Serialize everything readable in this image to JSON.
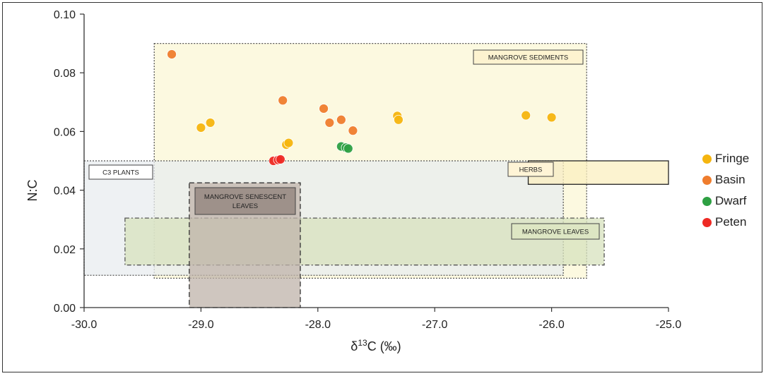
{
  "chart_data": {
    "type": "scatter",
    "title": "",
    "xlabel": "δ13C (‰)",
    "xlabel_parts": {
      "delta": "δ",
      "sup": "13",
      "rest": "C (‰)"
    },
    "ylabel": "N:C",
    "xlim": [
      -30.0,
      -25.0
    ],
    "ylim": [
      0.0,
      0.1
    ],
    "x_ticks": [
      "-30.0",
      "-29.0",
      "-28.0",
      "-27.0",
      "-26.0",
      "-25.0"
    ],
    "x_tick_values": [
      -30.0,
      -29.0,
      -28.0,
      -27.0,
      -26.0,
      -25.0
    ],
    "y_ticks": [
      "0.00",
      "0.02",
      "0.04",
      "0.06",
      "0.08",
      "0.10"
    ],
    "y_tick_values": [
      0.0,
      0.02,
      0.04,
      0.06,
      0.08,
      0.1
    ],
    "regions": [
      {
        "name": "MANGROVE SEDIMENTS",
        "x": [
          -29.4,
          -25.7
        ],
        "y": [
          0.01,
          0.09
        ],
        "fill": "#fbf7d6",
        "stroke": "#555555",
        "dash": "2,2",
        "box_fill": "#fdf3d0",
        "label_lines": [
          "MANGROVE SEDIMENTS"
        ]
      },
      {
        "name": "C3 PLANTS",
        "x": [
          -30.0,
          -25.9
        ],
        "y": [
          0.011,
          0.05
        ],
        "fill": "#e8ecef",
        "stroke": "#555555",
        "dash": "2,2",
        "box_fill": "#ffffff",
        "label_lines": [
          "C3 PLANTS"
        ]
      },
      {
        "name": "HERBS",
        "x": [
          -26.2,
          -25.0
        ],
        "y": [
          0.042,
          0.05
        ],
        "fill": "#fbefc0",
        "stroke": "#222222",
        "dash": "",
        "box_fill": "#fff4d6",
        "label_lines": [
          "HERBS"
        ]
      },
      {
        "name": "MANGROVE LEAVES",
        "x": [
          -29.65,
          -25.55
        ],
        "y": [
          0.0145,
          0.0305
        ],
        "fill": "#d7e2bd",
        "stroke": "#555555",
        "dash": "6,3,2,3",
        "box_fill": "#dde6c3",
        "label_lines": [
          "MANGROVE LEAVES"
        ]
      },
      {
        "name": "MANGROVE SENESCENT LEAVES",
        "x": [
          -29.1,
          -28.15
        ],
        "y": [
          0.0,
          0.0425
        ],
        "fill": "#bfb3aa",
        "stroke": "#333333",
        "dash": "7,4",
        "box_fill": "#9e918a",
        "label_lines": [
          "MANGROVE SENESCENT",
          "LEAVES"
        ]
      }
    ],
    "series": [
      {
        "name": "Fringe",
        "color": "#f5b50f",
        "points": [
          [
            -29.0,
            0.0613
          ],
          [
            -28.92,
            0.063
          ],
          [
            -28.27,
            0.0555
          ],
          [
            -28.25,
            0.0561
          ],
          [
            -27.32,
            0.0653
          ],
          [
            -27.31,
            0.064
          ],
          [
            -26.22,
            0.0655
          ],
          [
            -26.0,
            0.0648
          ]
        ]
      },
      {
        "name": "Basin",
        "color": "#ef7d2d",
        "points": [
          [
            -29.25,
            0.0863
          ],
          [
            -28.3,
            0.0706
          ],
          [
            -27.95,
            0.0678
          ],
          [
            -27.9,
            0.063
          ],
          [
            -27.8,
            0.064
          ],
          [
            -27.7,
            0.0603
          ]
        ]
      },
      {
        "name": "Dwarf",
        "color": "#2ea043",
        "points": [
          [
            -27.8,
            0.0549
          ],
          [
            -27.76,
            0.0545
          ],
          [
            -27.74,
            0.0542
          ]
        ]
      },
      {
        "name": "Peten",
        "color": "#ee2a24",
        "points": [
          [
            -28.38,
            0.05
          ],
          [
            -28.34,
            0.0503
          ],
          [
            -28.32,
            0.0505
          ]
        ]
      }
    ]
  }
}
